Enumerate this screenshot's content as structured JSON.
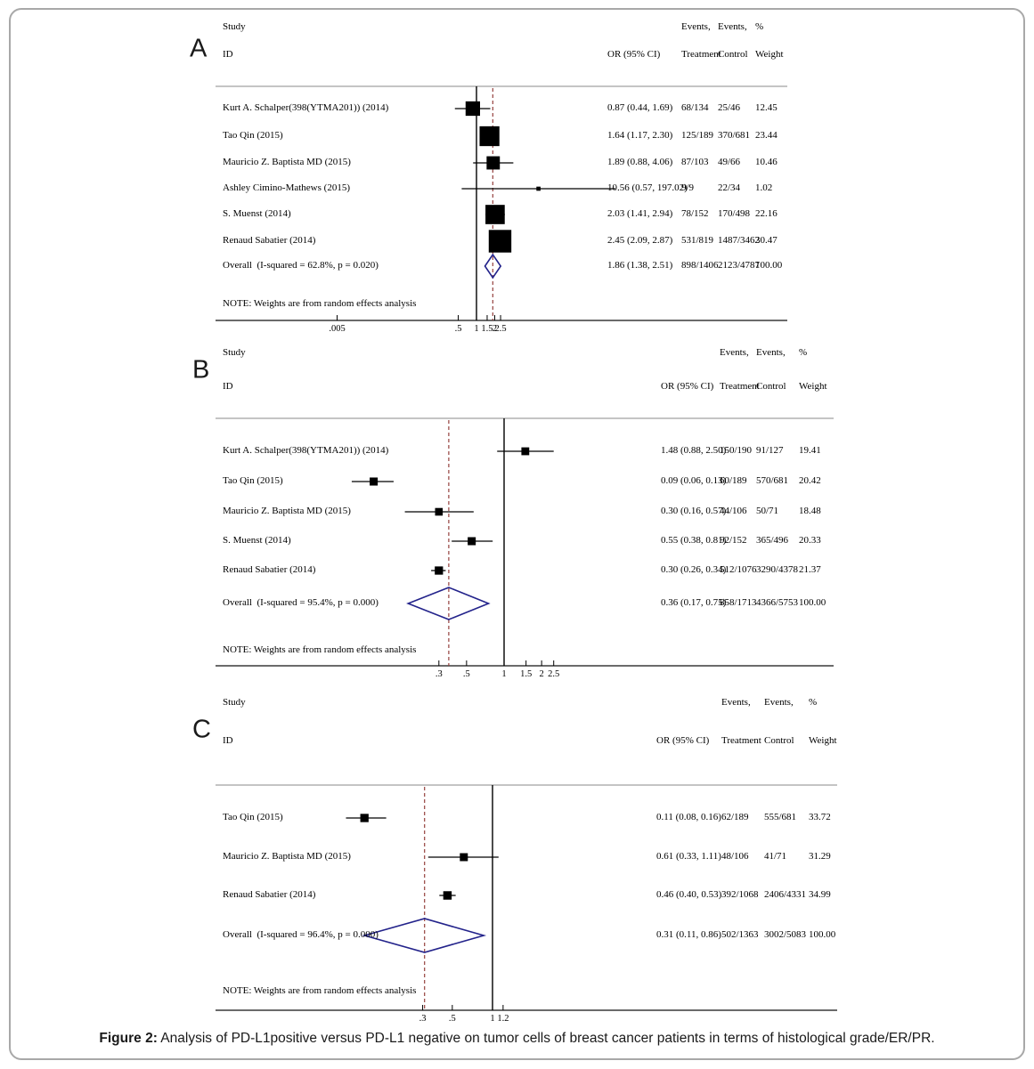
{
  "figure": {
    "caption_prefix": "Figure 2:",
    "caption_text": " Analysis of PD-L1positive versus PD-L1 negative on tumor cells of breast cancer patients in terms of histological grade/ER/PR."
  },
  "colors": {
    "marker": "#000000",
    "ci_line": "#000000",
    "null_line": "#000000",
    "dashed_overall_line": "#95403d",
    "diamond_outline": "#23238b",
    "top_rule": "#b0b0b0",
    "axis_line": "#3a3a3a",
    "text": "#000000"
  },
  "chart_data": [
    {
      "type": "forest",
      "label": "A",
      "xscale": "log",
      "null_value": 1,
      "legend_position": "none",
      "header": {
        "study": "Study",
        "id": "ID",
        "or": "OR (95% CI)",
        "events": "Events,",
        "treatment": "Treatment",
        "control": "Control",
        "pct": "%",
        "weight": "Weight"
      },
      "note": "NOTE: Weights are from random effects analysis",
      "x_ticks": [
        {
          "v": 0.005,
          "label": ".005"
        },
        {
          "v": 0.5,
          "label": ".5"
        },
        {
          "v": 1,
          "label": "1"
        },
        {
          "v": 1.5,
          "label": "1.5"
        },
        {
          "v": 2,
          "label": "2"
        },
        {
          "v": 2.5,
          "label": "2.5"
        }
      ],
      "rows": [
        {
          "study": "Kurt A. Schalper(398(YTMA201)) (2014)",
          "or": 0.87,
          "lo": 0.44,
          "hi": 1.69,
          "or_label": "0.87 (0.44, 1.69)",
          "treatment": "68/134",
          "control": "25/46",
          "weight": "12.45"
        },
        {
          "study": "Tao Qin (2015)",
          "or": 1.64,
          "lo": 1.17,
          "hi": 2.3,
          "or_label": "1.64 (1.17, 2.30)",
          "treatment": "125/189",
          "control": "370/681",
          "weight": "23.44"
        },
        {
          "study": "Mauricio Z. Baptista MD (2015)",
          "or": 1.89,
          "lo": 0.88,
          "hi": 4.06,
          "or_label": "1.89 (0.88, 4.06)",
          "treatment": "87/103",
          "control": "49/66",
          "weight": "10.46"
        },
        {
          "study": "Ashley Cimino-Mathews (2015)",
          "or": 10.56,
          "lo": 0.57,
          "hi": 197.02,
          "or_label": "10.56 (0.57, 197.02)",
          "treatment": "9/9",
          "control": "22/34",
          "weight": "1.02"
        },
        {
          "study": "S. Muenst (2014)",
          "or": 2.03,
          "lo": 1.41,
          "hi": 2.94,
          "or_label": "2.03 (1.41, 2.94)",
          "treatment": "78/152",
          "control": "170/498",
          "weight": "22.16"
        },
        {
          "study": "Renaud Sabatier (2014)",
          "or": 2.45,
          "lo": 2.09,
          "hi": 2.87,
          "or_label": "2.45 (2.09, 2.87)",
          "treatment": "531/819",
          "control": "1487/3462",
          "weight": "30.47"
        }
      ],
      "overall": {
        "study": "Overall  (I-squared = 62.8%, p = 0.020)",
        "or": 1.86,
        "lo": 1.38,
        "hi": 2.51,
        "or_label": "1.86 (1.38, 2.51)",
        "treatment": "898/1406",
        "control": "2123/4787",
        "weight": "100.00"
      }
    },
    {
      "type": "forest",
      "label": "B",
      "xscale": "log",
      "null_value": 1,
      "legend_position": "none",
      "header": {
        "study": "Study",
        "id": "ID",
        "or": "OR (95% CI)",
        "events": "Events,",
        "treatment": "Treatment",
        "control": "Control",
        "pct": "%",
        "weight": "Weight"
      },
      "note": "NOTE: Weights are from random effects analysis",
      "x_ticks": [
        {
          "v": 0.3,
          "label": ".3"
        },
        {
          "v": 0.5,
          "label": ".5"
        },
        {
          "v": 1,
          "label": "1"
        },
        {
          "v": 1.5,
          "label": "1.5"
        },
        {
          "v": 2,
          "label": "2"
        },
        {
          "v": 2.5,
          "label": "2.5"
        }
      ],
      "rows": [
        {
          "study": "Kurt A. Schalper(398(YTMA201)) (2014)",
          "or": 1.48,
          "lo": 0.88,
          "hi": 2.5,
          "or_label": "1.48 (0.88, 2.50)",
          "treatment": "150/190",
          "control": "91/127",
          "weight": "19.41"
        },
        {
          "study": "Tao Qin (2015)",
          "or": 0.09,
          "lo": 0.06,
          "hi": 0.13,
          "or_label": "0.09 (0.06, 0.13)",
          "treatment": "60/189",
          "control": "570/681",
          "weight": "20.42"
        },
        {
          "study": "Mauricio Z. Baptista MD (2015)",
          "or": 0.3,
          "lo": 0.16,
          "hi": 0.57,
          "or_label": "0.30 (0.16, 0.57)",
          "treatment": "44/106",
          "control": "50/71",
          "weight": "18.48"
        },
        {
          "study": "S. Muenst (2014)",
          "or": 0.55,
          "lo": 0.38,
          "hi": 0.81,
          "or_label": "0.55 (0.38, 0.81)",
          "treatment": "92/152",
          "control": "365/496",
          "weight": "20.33"
        },
        {
          "study": "Renaud Sabatier (2014)",
          "or": 0.3,
          "lo": 0.26,
          "hi": 0.34,
          "or_label": "0.30 (0.26, 0.34)",
          "treatment": "512/1076",
          "control": "3290/4378",
          "weight": "21.37"
        }
      ],
      "overall": {
        "study": "Overall  (I-squared = 95.4%, p = 0.000)",
        "or": 0.36,
        "lo": 0.17,
        "hi": 0.75,
        "or_label": "0.36 (0.17, 0.75)",
        "treatment": "858/1713",
        "control": "4366/5753",
        "weight": "100.00"
      }
    },
    {
      "type": "forest",
      "label": "C",
      "xscale": "log",
      "null_value": 1,
      "legend_position": "none",
      "header": {
        "study": "Study",
        "id": "ID",
        "or": "OR (95% CI)",
        "events": "Events,",
        "treatment": "Treatment",
        "control": "Control",
        "pct": "%",
        "weight": "Weight"
      },
      "note": "NOTE: Weights are from random effects analysis",
      "x_ticks": [
        {
          "v": 0.3,
          "label": ".3"
        },
        {
          "v": 0.5,
          "label": ".5"
        },
        {
          "v": 1,
          "label": "1"
        },
        {
          "v": 1.2,
          "label": "1.2"
        }
      ],
      "rows": [
        {
          "study": "Tao Qin (2015)",
          "or": 0.11,
          "lo": 0.08,
          "hi": 0.16,
          "or_label": "0.11 (0.08, 0.16)",
          "treatment": "62/189",
          "control": "555/681",
          "weight": "33.72"
        },
        {
          "study": "Mauricio Z. Baptista MD (2015)",
          "or": 0.61,
          "lo": 0.33,
          "hi": 1.11,
          "or_label": "0.61 (0.33, 1.11)",
          "treatment": "48/106",
          "control": "41/71",
          "weight": "31.29"
        },
        {
          "study": "Renaud Sabatier (2014)",
          "or": 0.46,
          "lo": 0.4,
          "hi": 0.53,
          "or_label": "0.46 (0.40, 0.53)",
          "treatment": "392/1068",
          "control": "2406/4331",
          "weight": "34.99"
        }
      ],
      "overall": {
        "study": "Overall  (I-squared = 96.4%, p = 0.000)",
        "or": 0.31,
        "lo": 0.11,
        "hi": 0.86,
        "or_label": "0.31 (0.11, 0.86)",
        "treatment": "502/1363",
        "control": "3002/5083",
        "weight": "100.00"
      }
    }
  ]
}
